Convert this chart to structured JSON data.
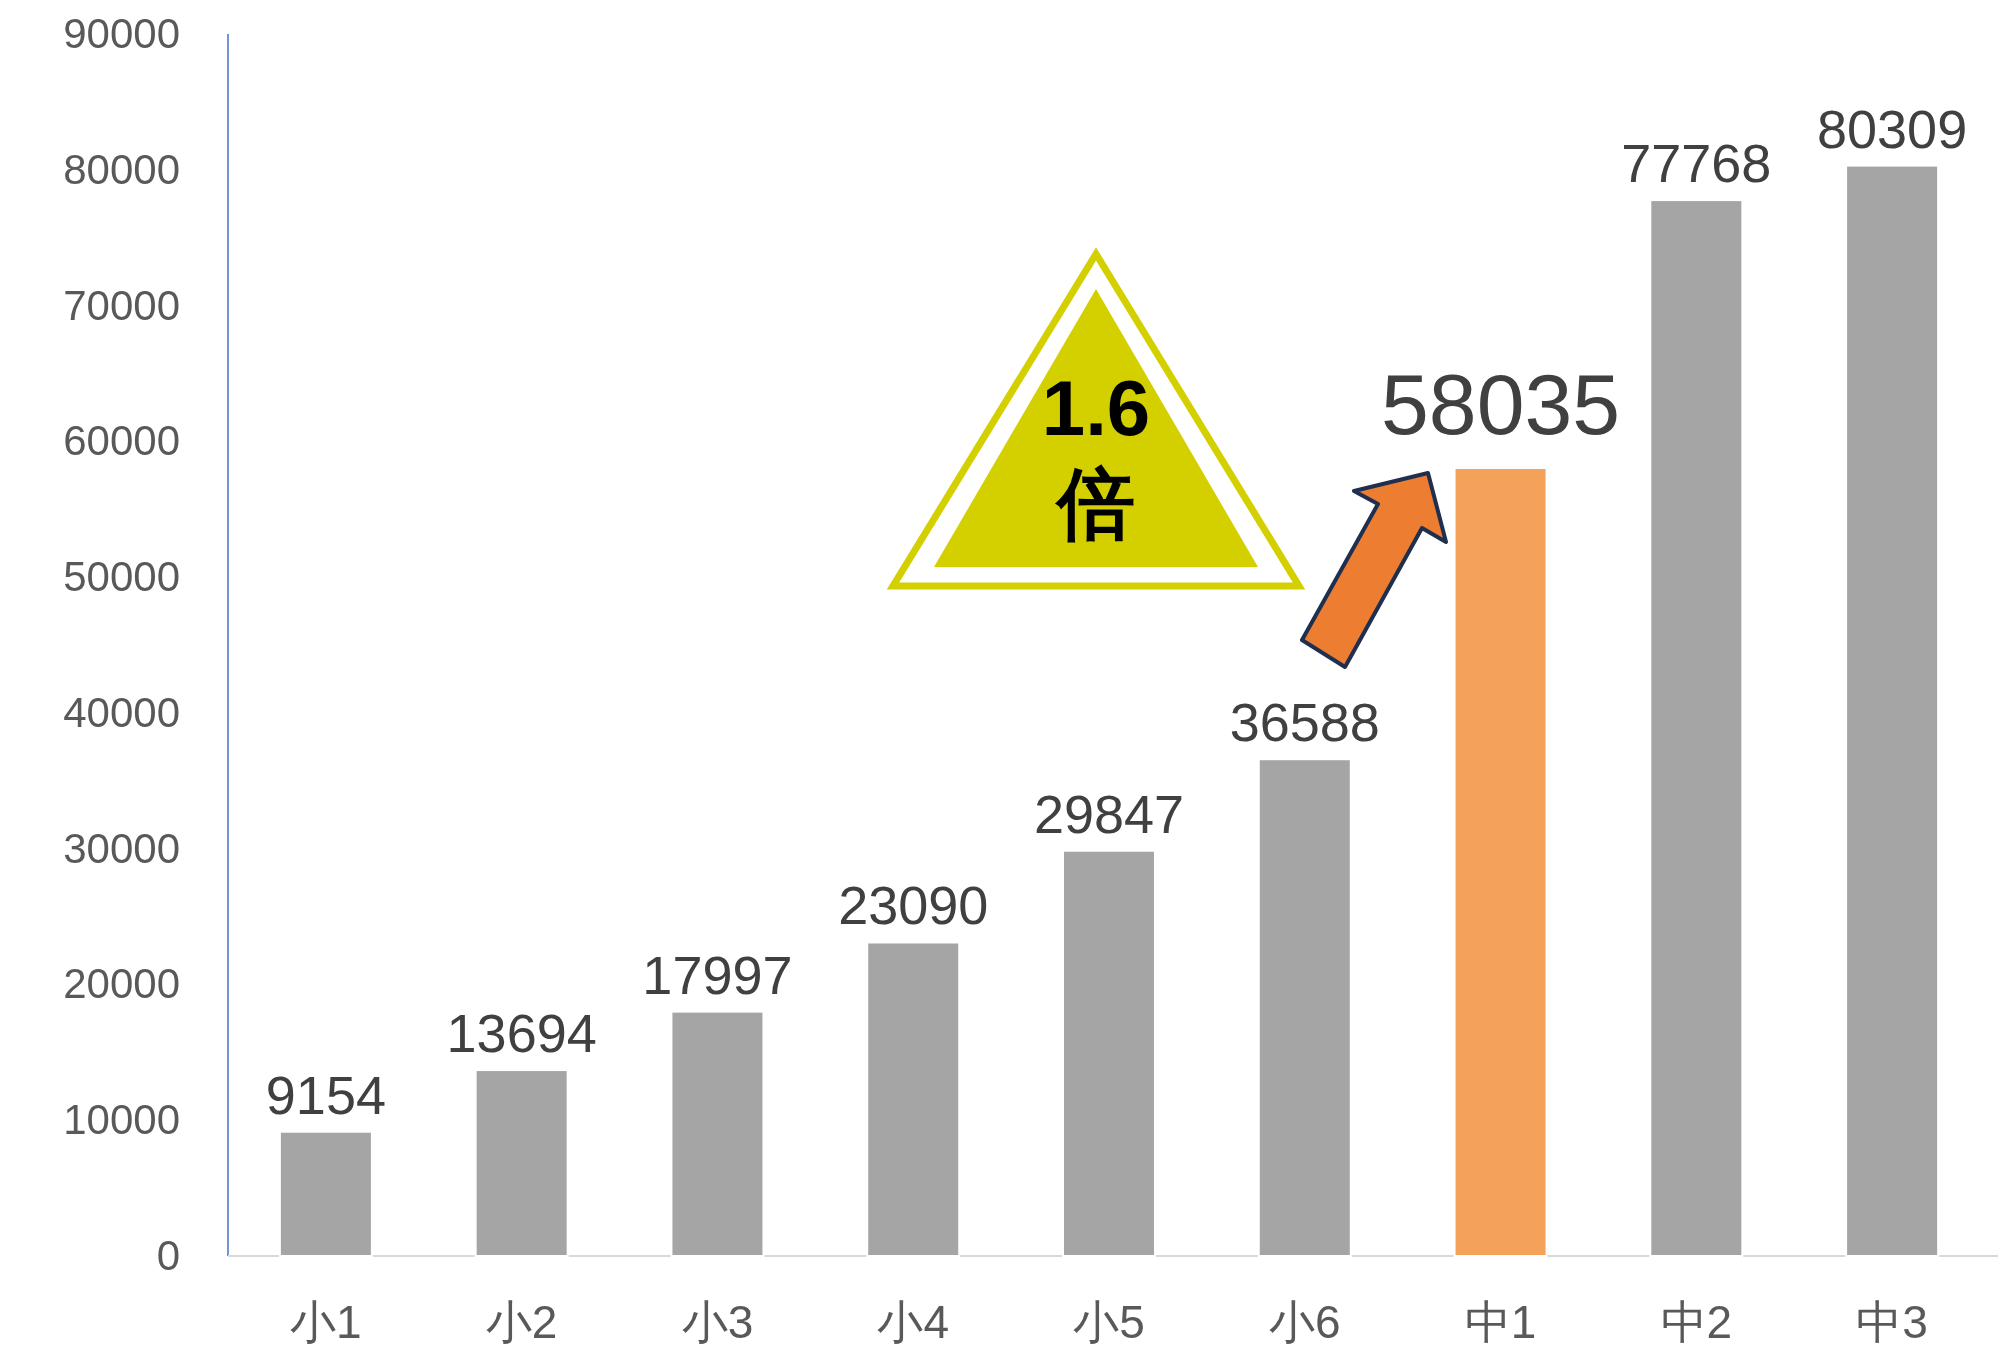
{
  "chart_data": {
    "type": "bar",
    "categories": [
      "小1",
      "小2",
      "小3",
      "小4",
      "小5",
      "小6",
      "中1",
      "中2",
      "中3"
    ],
    "values": [
      9154,
      13694,
      17997,
      23090,
      29847,
      36588,
      58035,
      77768,
      80309
    ],
    "colors": [
      "#a5a5a5",
      "#a5a5a5",
      "#a5a5a5",
      "#a5a5a5",
      "#a5a5a5",
      "#a5a5a5",
      "#f4a25a",
      "#a5a5a5",
      "#a5a5a5"
    ],
    "ylim": [
      0,
      90000
    ],
    "yticks": [
      0,
      10000,
      20000,
      30000,
      40000,
      50000,
      60000,
      70000,
      80000,
      90000
    ],
    "data_labels": true,
    "annotations": [
      "1.6倍"
    ]
  }
}
